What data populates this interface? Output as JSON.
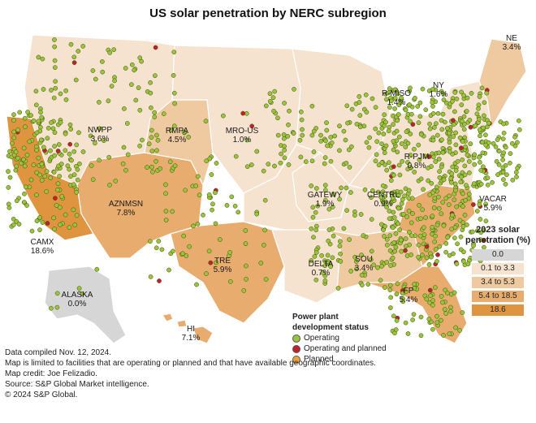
{
  "title": "US solar penetration by NERC subregion",
  "colors": {
    "band_0": "#d6d6d6",
    "band_1": "#f6e3cf",
    "band_2": "#efc9a0",
    "band_3": "#e8ad6e",
    "band_4": "#df943f",
    "operating": "#9bc43a",
    "operating_planned": "#c0222c",
    "planned": "#f0a23a"
  },
  "regions": [
    {
      "name": "NE",
      "value": "3.4%"
    },
    {
      "name": "NY",
      "value": "1.6%"
    },
    {
      "name": "R-MISO",
      "value": "1.4%"
    },
    {
      "name": "NWPP",
      "value": "3.6%"
    },
    {
      "name": "RMPA",
      "value": "4.5%"
    },
    {
      "name": "MRO-US",
      "value": "1.0%"
    },
    {
      "name": "R-PJM",
      "value": "0.8%"
    },
    {
      "name": "AZNMSN",
      "value": "7.8%"
    },
    {
      "name": "GATEWY",
      "value": "1.9%"
    },
    {
      "name": "CENTRL",
      "value": "0.9%"
    },
    {
      "name": "VACAR",
      "value": "5.9%"
    },
    {
      "name": "CAMX",
      "value": "18.6%"
    },
    {
      "name": "DELTA",
      "value": "0.7%"
    },
    {
      "name": "SOU",
      "value": "3.4%"
    },
    {
      "name": "TRE",
      "value": "5.9%"
    },
    {
      "name": "FP",
      "value": "5.4%"
    },
    {
      "name": "ALASKA",
      "value": "0.0%"
    },
    {
      "name": "HI",
      "value": "7.1%"
    }
  ],
  "legend": {
    "title_line1": "2023 solar",
    "title_line2": "penetration (%)",
    "bands": [
      "0.0",
      "0.1 to 3.3",
      "3.4 to 5.3",
      "5.4 to 18.5",
      "18.6"
    ]
  },
  "status_legend": {
    "title_line1": "Power plant",
    "title_line2": "development status",
    "items": [
      "Operating",
      "Operating and planned",
      "Planned"
    ]
  },
  "footer": [
    "Data compiled Nov. 12, 2024.",
    "Map is limited to facilities that are operating or planned and that have available geographic coordinates.",
    "Map credit: Joe Felizadio.",
    "Source: S&P Global Market intelligence.",
    "© 2024 S&P Global."
  ]
}
